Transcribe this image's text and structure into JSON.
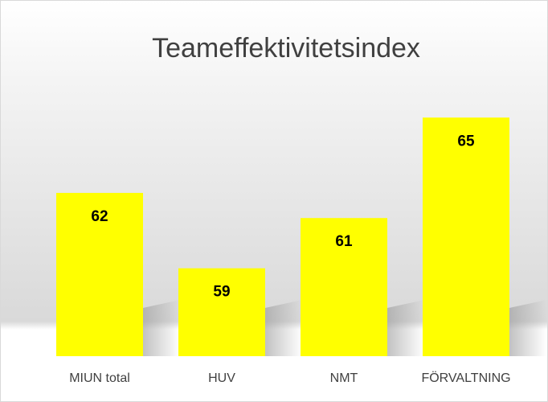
{
  "chart_data": {
    "type": "bar",
    "title": "Teameffektivitetsindex",
    "categories": [
      "MIUN total",
      "HUV",
      "NMT",
      "FÖRVALTNING"
    ],
    "values": [
      62,
      59,
      61,
      65
    ],
    "color": "#ffff00",
    "ylim": [
      55.5,
      66
    ],
    "grid": false
  }
}
